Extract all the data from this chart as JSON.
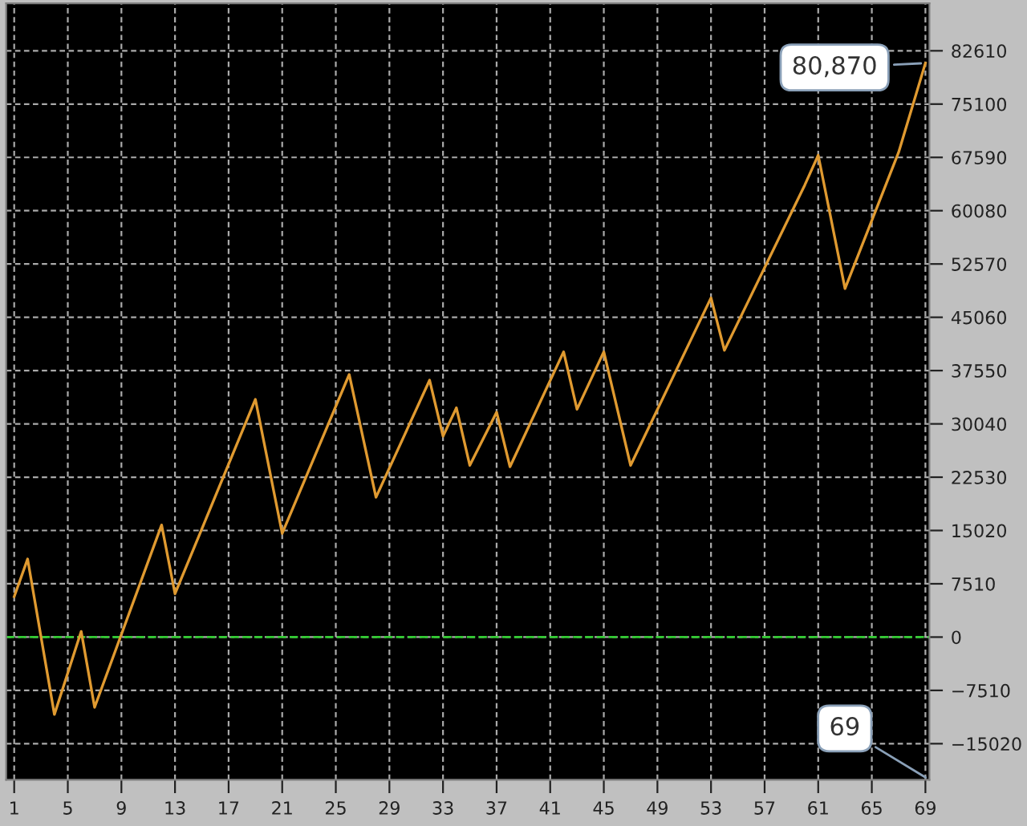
{
  "chart_data": {
    "type": "line",
    "x": [
      1,
      2,
      4,
      6,
      7,
      12,
      13,
      19,
      21,
      26,
      28,
      32,
      33,
      34,
      35,
      37,
      38,
      42,
      43,
      45,
      47,
      53,
      54,
      60,
      61,
      63,
      67,
      69
    ],
    "series": [
      {
        "color": "#e09a30",
        "values": [
          5700,
          11000,
          -10900,
          800,
          -9900,
          15800,
          6100,
          33500,
          14600,
          37000,
          19700,
          36200,
          28300,
          32300,
          24200,
          31700,
          24000,
          40200,
          32100,
          40200,
          24200,
          47800,
          40400,
          63700,
          67900,
          49100,
          68300,
          80870
        ]
      }
    ],
    "xlim": [
      0.4,
      69.3
    ],
    "ylim": [
      -20100,
      89300
    ],
    "xticks": [
      1,
      5,
      9,
      13,
      17,
      21,
      25,
      29,
      33,
      37,
      41,
      45,
      49,
      53,
      57,
      61,
      65,
      69
    ],
    "yticks": [
      {
        "value": -15020,
        "label": "−15020"
      },
      {
        "value": -7510,
        "label": "−7510"
      },
      0,
      7510,
      15020,
      22530,
      30040,
      37550,
      45060,
      52570,
      60080,
      67590,
      75100,
      82610
    ],
    "grid": true,
    "marker": "none",
    "line_style": "solid",
    "ref_lines": [
      {
        "axis": "y",
        "value": 0,
        "color": "#33cc33",
        "line_style": "dashed"
      }
    ],
    "annotations": [
      {
        "text": "80,870",
        "x": 69,
        "y": 80870
      },
      "69"
    ]
  }
}
